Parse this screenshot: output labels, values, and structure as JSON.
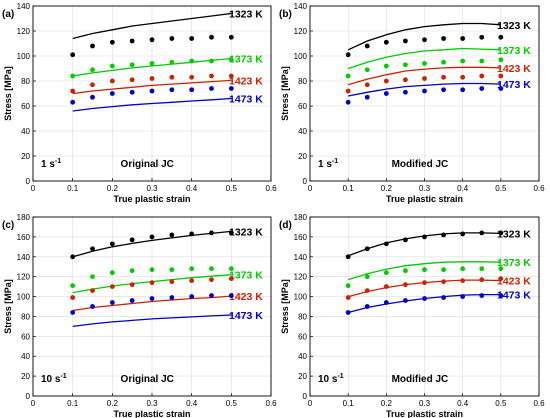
{
  "chart_data": [
    {
      "type": "scatter",
      "panel_label": "(a)",
      "strain_rate_label": "1 s",
      "strain_rate_exponent": "-1",
      "model_label": "Original JC",
      "xlabel": "True plastic strain",
      "ylabel": "Stress [MPa]",
      "xlim": [
        0,
        0.6
      ],
      "ylim": [
        0,
        140
      ],
      "xticks": [
        "0",
        "0.1",
        "0.2",
        "0.3",
        "0.4",
        "0.5",
        "0.6"
      ],
      "yticks": [
        "0",
        "20",
        "40",
        "60",
        "80",
        "100",
        "120",
        "140"
      ],
      "grid": true,
      "series": [
        {
          "name": "1323 K",
          "color": "#000000",
          "points_x": [
            0.1,
            0.15,
            0.2,
            0.25,
            0.3,
            0.35,
            0.4,
            0.45,
            0.5
          ],
          "points_y": [
            101,
            108,
            111,
            112,
            113,
            114,
            114,
            115,
            115
          ],
          "curve_x": [
            0.1,
            0.15,
            0.2,
            0.25,
            0.3,
            0.35,
            0.4,
            0.45,
            0.5
          ],
          "curve_y": [
            114,
            118,
            121,
            124,
            126,
            128,
            130,
            132,
            134
          ]
        },
        {
          "name": "1373 K",
          "color": "#00cc00",
          "points_x": [
            0.1,
            0.15,
            0.2,
            0.25,
            0.3,
            0.35,
            0.4,
            0.45,
            0.5
          ],
          "points_y": [
            84,
            89,
            92,
            93,
            94,
            95,
            96,
            96,
            97
          ],
          "curve_x": [
            0.1,
            0.15,
            0.2,
            0.25,
            0.3,
            0.35,
            0.4,
            0.45,
            0.5
          ],
          "curve_y": [
            84,
            86.5,
            88.5,
            90.5,
            92,
            93.5,
            95,
            96.5,
            98
          ]
        },
        {
          "name": "1423 K",
          "color": "#cc2200",
          "points_x": [
            0.1,
            0.15,
            0.2,
            0.25,
            0.3,
            0.35,
            0.4,
            0.45,
            0.5
          ],
          "points_y": [
            72,
            77,
            80,
            81,
            82,
            83,
            83,
            84,
            84
          ],
          "curve_x": [
            0.1,
            0.15,
            0.2,
            0.25,
            0.3,
            0.35,
            0.4,
            0.45,
            0.5
          ],
          "curve_y": [
            70,
            72,
            73.5,
            75,
            76.5,
            77.5,
            78.5,
            79.5,
            80.5
          ]
        },
        {
          "name": "1473 K",
          "color": "#0000cc",
          "points_x": [
            0.1,
            0.15,
            0.2,
            0.25,
            0.3,
            0.35,
            0.4,
            0.45,
            0.5
          ],
          "points_y": [
            63,
            67,
            70,
            71,
            72,
            73,
            73,
            74,
            74
          ],
          "curve_x": [
            0.1,
            0.15,
            0.2,
            0.25,
            0.3,
            0.35,
            0.4,
            0.45,
            0.5
          ],
          "curve_y": [
            56,
            58,
            59.5,
            61,
            62,
            63,
            64,
            65,
            66
          ]
        }
      ]
    },
    {
      "type": "scatter",
      "panel_label": "(b)",
      "strain_rate_label": "1 s",
      "strain_rate_exponent": "-1",
      "model_label": "Modified JC",
      "xlabel": "True plastic strain",
      "ylabel": "Stress [MPa]",
      "xlim": [
        0,
        0.6
      ],
      "ylim": [
        0,
        140
      ],
      "xticks": [
        "0",
        "0.1",
        "0.2",
        "0.3",
        "0.4",
        "0.5",
        "0.6"
      ],
      "yticks": [
        "0",
        "20",
        "40",
        "60",
        "80",
        "100",
        "120",
        "140"
      ],
      "grid": true,
      "series": [
        {
          "name": "1323 K",
          "color": "#000000",
          "points_x": [
            0.1,
            0.15,
            0.2,
            0.25,
            0.3,
            0.35,
            0.4,
            0.45,
            0.5
          ],
          "points_y": [
            101,
            108,
            111,
            112,
            113,
            114,
            114,
            115,
            115
          ],
          "curve_x": [
            0.1,
            0.15,
            0.2,
            0.25,
            0.3,
            0.35,
            0.4,
            0.45,
            0.5
          ],
          "curve_y": [
            105,
            112,
            117,
            121,
            123.5,
            125,
            126,
            126,
            125
          ]
        },
        {
          "name": "1373 K",
          "color": "#00cc00",
          "points_x": [
            0.1,
            0.15,
            0.2,
            0.25,
            0.3,
            0.35,
            0.4,
            0.45,
            0.5
          ],
          "points_y": [
            84,
            89,
            92,
            93,
            94,
            95,
            96,
            96,
            97
          ],
          "curve_x": [
            0.1,
            0.15,
            0.2,
            0.25,
            0.3,
            0.35,
            0.4,
            0.45,
            0.5
          ],
          "curve_y": [
            90,
            95,
            99,
            102,
            104,
            105,
            106,
            105.5,
            105
          ]
        },
        {
          "name": "1423 K",
          "color": "#cc2200",
          "points_x": [
            0.1,
            0.15,
            0.2,
            0.25,
            0.3,
            0.35,
            0.4,
            0.45,
            0.5
          ],
          "points_y": [
            72,
            77,
            80,
            81,
            82,
            83,
            83,
            84,
            84
          ],
          "curve_x": [
            0.1,
            0.15,
            0.2,
            0.25,
            0.3,
            0.35,
            0.4,
            0.45,
            0.5
          ],
          "curve_y": [
            77,
            81.5,
            85,
            88,
            89.5,
            90.5,
            91,
            91,
            90.5
          ]
        },
        {
          "name": "1473 K",
          "color": "#0000cc",
          "points_x": [
            0.1,
            0.15,
            0.2,
            0.25,
            0.3,
            0.35,
            0.4,
            0.45,
            0.5
          ],
          "points_y": [
            63,
            67,
            70,
            71,
            72,
            73,
            73,
            74,
            74
          ],
          "curve_x": [
            0.1,
            0.15,
            0.2,
            0.25,
            0.3,
            0.35,
            0.4,
            0.45,
            0.5
          ],
          "curve_y": [
            68,
            71,
            73.5,
            75.5,
            76.5,
            77.5,
            78,
            78,
            77.5
          ]
        }
      ]
    },
    {
      "type": "scatter",
      "panel_label": "(c)",
      "strain_rate_label": "10 s",
      "strain_rate_exponent": "-1",
      "model_label": "Original JC",
      "xlabel": "True plastic strain",
      "ylabel": "Stress [MPa]",
      "xlim": [
        0,
        0.6
      ],
      "ylim": [
        0,
        180
      ],
      "xticks": [
        "0",
        "0.1",
        "0.2",
        "0.3",
        "0.4",
        "0.5",
        "0.6"
      ],
      "yticks": [
        "0",
        "20",
        "40",
        "60",
        "80",
        "100",
        "120",
        "140",
        "160",
        "180"
      ],
      "grid": true,
      "series": [
        {
          "name": "1323 K",
          "color": "#000000",
          "points_x": [
            0.1,
            0.15,
            0.2,
            0.25,
            0.3,
            0.35,
            0.4,
            0.45,
            0.5
          ],
          "points_y": [
            140,
            148,
            153,
            157,
            160,
            162,
            163,
            164,
            164
          ],
          "curve_x": [
            0.1,
            0.15,
            0.2,
            0.25,
            0.3,
            0.35,
            0.4,
            0.45,
            0.5
          ],
          "curve_y": [
            140,
            145.5,
            150,
            153.5,
            156.5,
            159,
            161.5,
            163.5,
            165.5
          ]
        },
        {
          "name": "1373 K",
          "color": "#00cc00",
          "points_x": [
            0.1,
            0.15,
            0.2,
            0.25,
            0.3,
            0.35,
            0.4,
            0.45,
            0.5
          ],
          "points_y": [
            111,
            120,
            124,
            126,
            127,
            127,
            128,
            128,
            128
          ],
          "curve_x": [
            0.1,
            0.15,
            0.2,
            0.25,
            0.3,
            0.35,
            0.4,
            0.45,
            0.5
          ],
          "curve_y": [
            104,
            107.5,
            110.5,
            113,
            115,
            117,
            119,
            120.5,
            122
          ]
        },
        {
          "name": "1423 K",
          "color": "#cc2200",
          "points_x": [
            0.1,
            0.15,
            0.2,
            0.25,
            0.3,
            0.35,
            0.4,
            0.45,
            0.5
          ],
          "points_y": [
            99,
            106,
            110,
            112,
            114,
            115,
            116,
            117,
            118
          ],
          "curve_x": [
            0.1,
            0.15,
            0.2,
            0.25,
            0.3,
            0.35,
            0.4,
            0.45,
            0.5
          ],
          "curve_y": [
            86,
            89,
            91,
            93,
            95,
            96.5,
            98,
            99,
            100.5
          ]
        },
        {
          "name": "1473 K",
          "color": "#0000cc",
          "points_x": [
            0.1,
            0.15,
            0.2,
            0.25,
            0.3,
            0.35,
            0.4,
            0.45,
            0.5
          ],
          "points_y": [
            84,
            90,
            94,
            96,
            98,
            99,
            100,
            101,
            101
          ],
          "curve_x": [
            0.1,
            0.15,
            0.2,
            0.25,
            0.3,
            0.35,
            0.4,
            0.45,
            0.5
          ],
          "curve_y": [
            70,
            72.5,
            74.5,
            76,
            77.5,
            78.5,
            79.5,
            80.5,
            81.5
          ]
        }
      ]
    },
    {
      "type": "scatter",
      "panel_label": "(d)",
      "strain_rate_label": "10 s",
      "strain_rate_exponent": "-1",
      "model_label": "Modified JC",
      "xlabel": "True plastic strain",
      "ylabel": "Stress [MPa]",
      "xlim": [
        0,
        0.6
      ],
      "ylim": [
        0,
        180
      ],
      "xticks": [
        "0",
        "0.1",
        "0.2",
        "0.3",
        "0.4",
        "0.5",
        "0.6"
      ],
      "yticks": [
        "0",
        "20",
        "40",
        "60",
        "80",
        "100",
        "120",
        "140",
        "160",
        "180"
      ],
      "grid": true,
      "series": [
        {
          "name": "1323 K",
          "color": "#000000",
          "points_x": [
            0.1,
            0.15,
            0.2,
            0.25,
            0.3,
            0.35,
            0.4,
            0.45,
            0.5
          ],
          "points_y": [
            140,
            148,
            153,
            157,
            160,
            162,
            163,
            164,
            164
          ],
          "curve_x": [
            0.1,
            0.15,
            0.2,
            0.25,
            0.3,
            0.35,
            0.4,
            0.45,
            0.5
          ],
          "curve_y": [
            141,
            148,
            154,
            158,
            161,
            163,
            164,
            164,
            163.5
          ]
        },
        {
          "name": "1373 K",
          "color": "#00cc00",
          "points_x": [
            0.1,
            0.15,
            0.2,
            0.25,
            0.3,
            0.35,
            0.4,
            0.45,
            0.5
          ],
          "points_y": [
            111,
            120,
            124,
            126,
            127,
            127,
            128,
            128,
            128
          ],
          "curve_x": [
            0.1,
            0.15,
            0.2,
            0.25,
            0.3,
            0.35,
            0.4,
            0.45,
            0.5
          ],
          "curve_y": [
            117,
            123,
            127.5,
            131,
            133,
            134.5,
            135,
            135,
            134.5
          ]
        },
        {
          "name": "1423 K",
          "color": "#cc2200",
          "points_x": [
            0.1,
            0.15,
            0.2,
            0.25,
            0.3,
            0.35,
            0.4,
            0.45,
            0.5
          ],
          "points_y": [
            99,
            106,
            110,
            112,
            114,
            115,
            116,
            117,
            118
          ],
          "curve_x": [
            0.1,
            0.15,
            0.2,
            0.25,
            0.3,
            0.35,
            0.4,
            0.45,
            0.5
          ],
          "curve_y": [
            100,
            105,
            109,
            112,
            114,
            115.5,
            116.5,
            116.5,
            116
          ]
        },
        {
          "name": "1473 K",
          "color": "#0000cc",
          "points_x": [
            0.1,
            0.15,
            0.2,
            0.25,
            0.3,
            0.35,
            0.4,
            0.45,
            0.5
          ],
          "points_y": [
            84,
            90,
            94,
            96,
            98,
            99,
            100,
            101,
            101
          ],
          "curve_x": [
            0.1,
            0.15,
            0.2,
            0.25,
            0.3,
            0.35,
            0.4,
            0.45,
            0.5
          ],
          "curve_y": [
            84,
            89,
            92.5,
            95.5,
            98,
            100,
            101.5,
            102,
            102
          ]
        }
      ]
    }
  ]
}
